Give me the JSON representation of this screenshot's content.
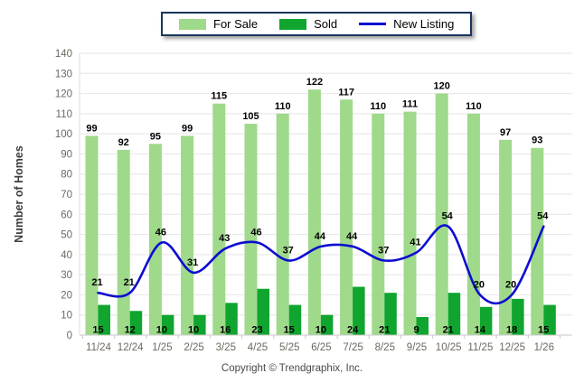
{
  "legend": {
    "items": [
      {
        "label": "For Sale",
        "type": "bar",
        "color": "#9fd98a"
      },
      {
        "label": "Sold",
        "type": "bar",
        "color": "#0fa52e"
      },
      {
        "label": "New Listing",
        "type": "line",
        "color": "#0d0dd1"
      }
    ]
  },
  "chart_data": {
    "type": "bar",
    "subtype": "grouped bars with smooth overlay line",
    "categories": [
      "11/24",
      "12/24",
      "1/25",
      "2/25",
      "3/25",
      "4/25",
      "5/25",
      "6/25",
      "7/25",
      "8/25",
      "9/25",
      "10/25",
      "11/25",
      "12/25",
      "1/26"
    ],
    "series": [
      {
        "name": "For Sale",
        "type": "bar",
        "color": "#9fd98a",
        "values": [
          99,
          92,
          95,
          99,
          115,
          105,
          110,
          122,
          117,
          110,
          111,
          120,
          110,
          97,
          93
        ]
      },
      {
        "name": "Sold",
        "type": "bar",
        "color": "#0fa52e",
        "values": [
          15,
          12,
          10,
          10,
          16,
          23,
          15,
          10,
          24,
          21,
          9,
          21,
          14,
          18,
          15
        ]
      },
      {
        "name": "New Listing",
        "type": "line",
        "color": "#0d0dd1",
        "values": [
          21,
          21,
          46,
          31,
          43,
          46,
          37,
          44,
          44,
          37,
          41,
          54,
          20,
          20,
          54
        ]
      }
    ],
    "title": "",
    "xlabel": "",
    "ylabel": "Number of Homes",
    "ylim": [
      0,
      140
    ],
    "ytick_step": 10,
    "grid": true,
    "legend_position": "top-center",
    "value_labels_shown": true
  },
  "footer": {
    "copyright": "Copyright © Trendgraphix, Inc."
  },
  "colors": {
    "grid_line": "#eaeaea",
    "axis_line": "#c8c8c8",
    "tick_label": "#6d6860",
    "value_label": "#000000",
    "background": "#ffffff"
  }
}
